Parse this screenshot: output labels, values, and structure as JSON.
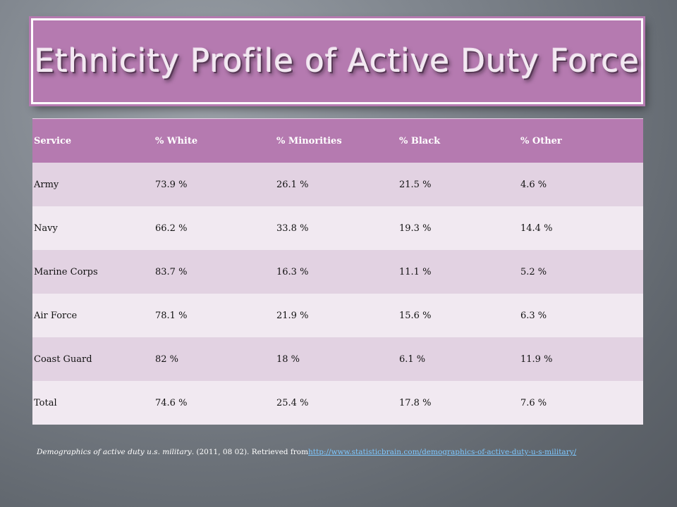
{
  "slide": {
    "title": "Ethnicity Profile of Active Duty Force",
    "table": {
      "headers": [
        "Service",
        "% White",
        "% Minorities",
        "% Black",
        "% Other"
      ],
      "rows": [
        [
          "Army",
          "73.9 %",
          "26.1 %",
          "21.5 %",
          "4.6 %"
        ],
        [
          "Navy",
          "66.2 %",
          "33.8 %",
          "19.3 %",
          "14.4 %"
        ],
        [
          "Marine Corps",
          "83.7 %",
          "16.3 %",
          "11.1 %",
          "5.2 %"
        ],
        [
          "Air Force",
          "78.1 %",
          "21.9 %",
          "15.6 %",
          "6.3 %"
        ],
        [
          "Coast Guard",
          "82 %",
          "18 %",
          "6.1 %",
          "11.9 %"
        ],
        [
          "Total",
          "74.6 %",
          "25.4 %",
          "17.8 %",
          "7.6 %"
        ]
      ]
    },
    "citation": {
      "title_italic": "Demographics of active duty u.s. military",
      "rest": ". (2011, 08 02). Retrieved from",
      "link": "http://www.statisticbrain.com/demographics-of-active-duty-u-s-military/"
    }
  },
  "colors": {
    "accent": "#b57ab0",
    "row_odd": "#e2d2e2",
    "row_even": "#f1e9f1",
    "link": "#7ec8ff"
  }
}
